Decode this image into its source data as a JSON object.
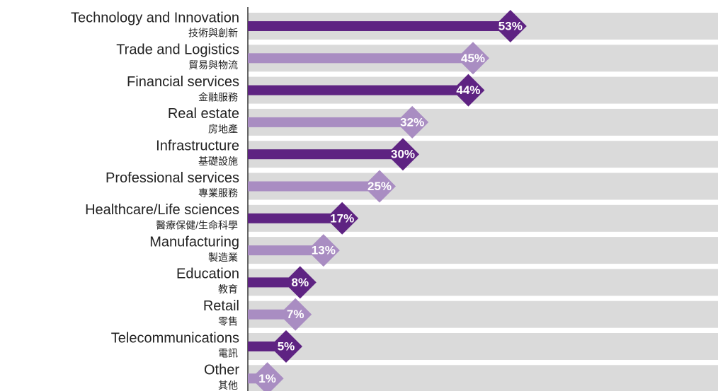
{
  "chart_data": {
    "type": "bar",
    "orientation": "horizontal",
    "categories": [
      "Technology and Innovation",
      "Trade and Logistics",
      "Financial services",
      "Real estate",
      "Infrastructure",
      "Professional services",
      "Healthcare/Life sciences",
      "Manufacturing",
      "Education",
      "Retail",
      "Telecommunications",
      "Other"
    ],
    "subcategories": [
      "技術與創新",
      "貿易與物流",
      "金融服務",
      "房地產",
      "基礎設施",
      "專業服務",
      "醫療保健/生命科學",
      "製造業",
      "教育",
      "零售",
      "電訊",
      "其他"
    ],
    "values": [
      53,
      45,
      44,
      32,
      30,
      25,
      17,
      13,
      8,
      7,
      5,
      1
    ],
    "value_labels": [
      "53%",
      "45%",
      "44%",
      "32%",
      "30%",
      "25%",
      "17%",
      "13%",
      "8%",
      "7%",
      "5%",
      "1%"
    ],
    "colors": [
      "#5e2382",
      "#a98dc2",
      "#5e2382",
      "#a98dc2",
      "#5e2382",
      "#a98dc2",
      "#5e2382",
      "#a98dc2",
      "#5e2382",
      "#a98dc2",
      "#5e2382",
      "#a98dc2"
    ]
  }
}
